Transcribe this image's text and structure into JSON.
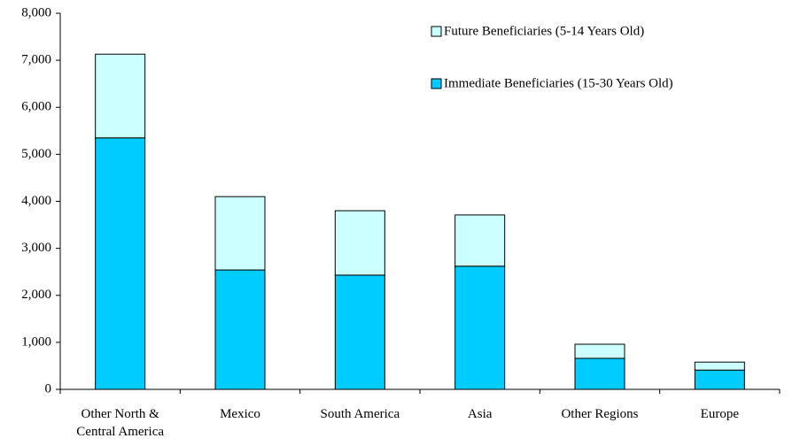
{
  "chart_data": {
    "type": "stacked_bar",
    "categories": [
      "Other North & Central America",
      "Mexico",
      "South America",
      "Asia",
      "Other Regions",
      "Europe"
    ],
    "series": [
      {
        "name": "Immediate Beneficiaries (15-30 Years Old)",
        "color": "#00ccff",
        "values": [
          5350,
          2540,
          2430,
          2620,
          660,
          410
        ]
      },
      {
        "name": "Future Beneficiaries (5-14 Years Old)",
        "color": "#ccffff",
        "values": [
          1780,
          1560,
          1370,
          1090,
          300,
          170
        ]
      }
    ],
    "ylim": [
      0,
      8000
    ],
    "yticks": [
      0,
      {
        "value": 1000,
        "label": "1,000"
      },
      {
        "value": 2000,
        "label": "2,000"
      },
      {
        "value": 3000,
        "label": "3,000"
      },
      {
        "value": 4000,
        "label": "4,000"
      },
      {
        "value": 5000,
        "label": "5,000"
      },
      {
        "value": 6000,
        "label": "6,000"
      },
      {
        "value": 7000,
        "label": "7,000"
      },
      {
        "value": 8000,
        "label": "8,000"
      }
    ],
    "legend": "top-right"
  }
}
